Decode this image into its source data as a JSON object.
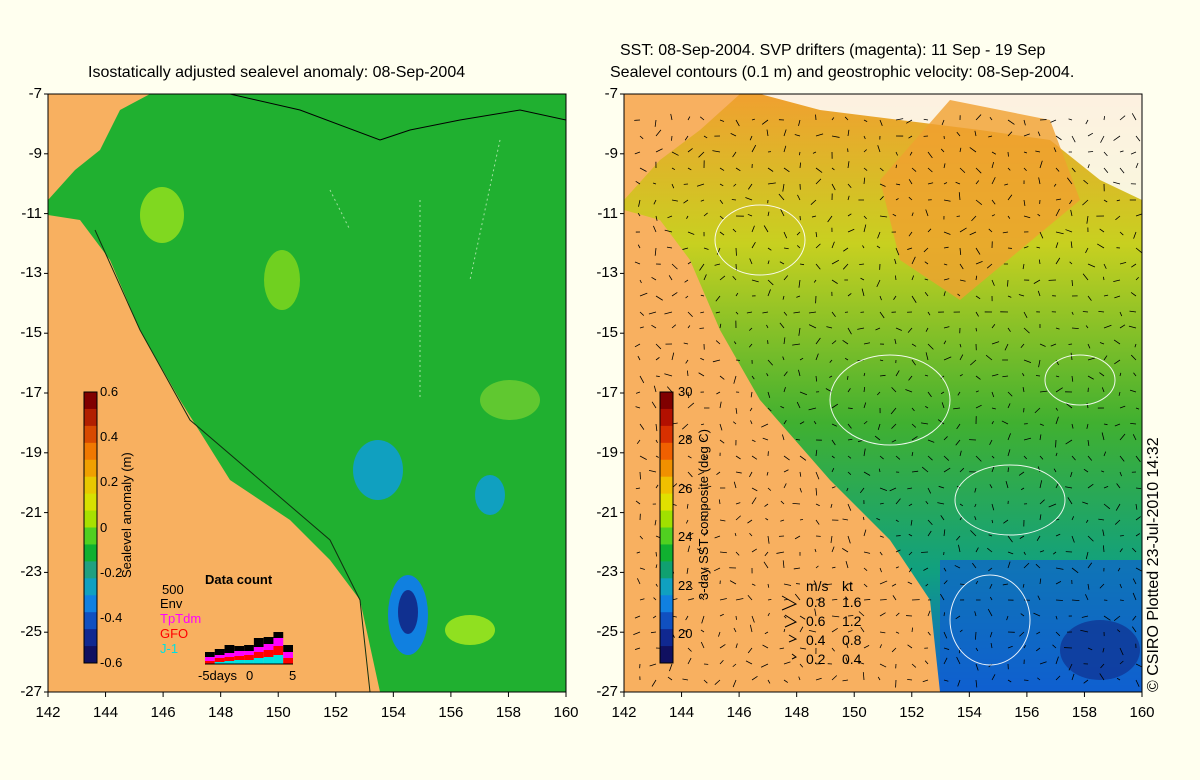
{
  "left_panel": {
    "title": "Isostatically adjusted sealevel anomaly: 08-Sep-2004",
    "colorbar": {
      "label": "Sealevel anomaly (m)",
      "ticks": [
        "0.6",
        "0.4",
        "0.2",
        "0",
        "-0.2",
        "-0.4",
        "-0.6"
      ],
      "colors": [
        "#800000",
        "#b22000",
        "#d84a00",
        "#f07800",
        "#f0a000",
        "#e8c800",
        "#d8e000",
        "#a8e000",
        "#50d020",
        "#10b030",
        "#20a080",
        "#10a0c0",
        "#1080e0",
        "#1050c0",
        "#102890",
        "#101060"
      ]
    },
    "data_count": {
      "title": "Data count",
      "scale_label": "500",
      "sources": [
        {
          "name": "Env",
          "color": "#000000"
        },
        {
          "name": "TpTdm",
          "color": "#ff00ff"
        },
        {
          "name": "GFO",
          "color": "#ff0000"
        },
        {
          "name": "J-1",
          "color": "#00e0e0"
        }
      ],
      "x_labels": [
        "-5days",
        "0",
        "5"
      ]
    }
  },
  "right_panel": {
    "title_line1": "SST: 08-Sep-2004. SVP drifters (magenta): 11 Sep - 19 Sep",
    "title_line2": "Sealevel contours (0.1 m) and geostrophic velocity: 08-Sep-2004.",
    "colorbar": {
      "label": "3-day SST composite (deg C)",
      "ticks": [
        "30",
        "28",
        "26",
        "24",
        "22",
        "20"
      ],
      "colors": [
        "#800000",
        "#b21000",
        "#d83000",
        "#f06000",
        "#f09000",
        "#f0c000",
        "#e0e000",
        "#a0e000",
        "#50d020",
        "#10b030",
        "#10a070",
        "#10a0c0",
        "#1080e0",
        "#1050c0",
        "#102890",
        "#101060"
      ]
    },
    "velocity_legend": {
      "header_ms": "m/s",
      "header_kt": "kt",
      "rows": [
        {
          "ms": "0.8",
          "kt": "1.6"
        },
        {
          "ms": "0.6",
          "kt": "1.2"
        },
        {
          "ms": "0.4",
          "kt": "0.8"
        },
        {
          "ms": "0.2",
          "kt": "0.4"
        }
      ]
    }
  },
  "axes": {
    "y_ticks": [
      "-7",
      "-9",
      "-11",
      "-13",
      "-15",
      "-17",
      "-19",
      "-21",
      "-23",
      "-25",
      "-27"
    ],
    "x_ticks": [
      "142",
      "144",
      "146",
      "148",
      "150",
      "152",
      "154",
      "156",
      "158",
      "160"
    ]
  },
  "credit": "© CSIRO Plotted 23-Jul-2010 14:32",
  "colors": {
    "land": "#f8b060",
    "sea_green": "#20b030",
    "background": "#ffffef"
  }
}
